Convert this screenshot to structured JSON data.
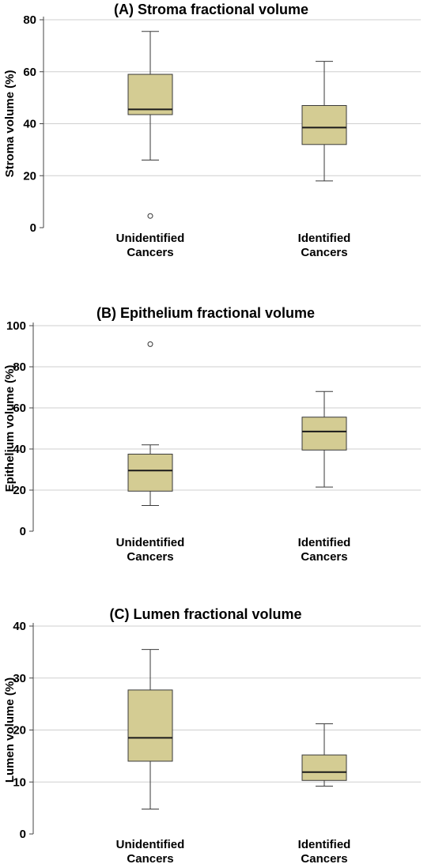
{
  "colors": {
    "box_fill": "#d4cc93",
    "box_stroke": "#3a3a3a",
    "median": "#1a1a1a",
    "whisker": "#3a3a3a",
    "grid": "#cfcfcf",
    "axis": "#444444"
  },
  "chart_data": [
    {
      "type": "box",
      "title": "(A) Stroma fractional volume",
      "ylabel": "Stroma volume (%)",
      "ylim": [
        0,
        80
      ],
      "yticks": [
        0,
        20,
        40,
        60,
        80
      ],
      "grid": true,
      "categories": [
        {
          "line1": "Unidentified",
          "line2": "Cancers",
          "min": 26,
          "q1": 43.5,
          "median": 45.5,
          "q3": 59,
          "max": 75.5,
          "outliers": [
            4.5
          ]
        },
        {
          "line1": "Identified",
          "line2": "Cancers",
          "min": 18,
          "q1": 32,
          "median": 38.5,
          "q3": 47,
          "max": 64,
          "outliers": []
        }
      ]
    },
    {
      "type": "box",
      "title": "(B) Epithelium fractional volume",
      "ylabel": "Epithelium volume (%)",
      "ylim": [
        0,
        100
      ],
      "yticks": [
        0,
        20,
        40,
        60,
        80,
        100
      ],
      "grid": true,
      "categories": [
        {
          "line1": "Unidentified",
          "line2": "Cancers",
          "min": 12.5,
          "q1": 19.5,
          "median": 29.5,
          "q3": 37.5,
          "max": 42,
          "outliers": [
            91
          ]
        },
        {
          "line1": "Identified",
          "line2": "Cancers",
          "min": 21.5,
          "q1": 39.5,
          "median": 48.5,
          "q3": 55.5,
          "max": 68,
          "outliers": []
        }
      ]
    },
    {
      "type": "box",
      "title": "(C) Lumen fractional volume",
      "ylabel": "Lumen volume (%)",
      "ylim": [
        0,
        40
      ],
      "yticks": [
        0,
        10,
        20,
        30,
        40
      ],
      "grid": true,
      "categories": [
        {
          "line1": "Unidentified",
          "line2": "Cancers",
          "min": 4.8,
          "q1": 14,
          "median": 18.5,
          "q3": 27.7,
          "max": 35.5,
          "outliers": []
        },
        {
          "line1": "Identified",
          "line2": "Cancers",
          "min": 9.2,
          "q1": 10.3,
          "median": 11.9,
          "q3": 15.2,
          "max": 21.2,
          "outliers": []
        }
      ]
    }
  ]
}
